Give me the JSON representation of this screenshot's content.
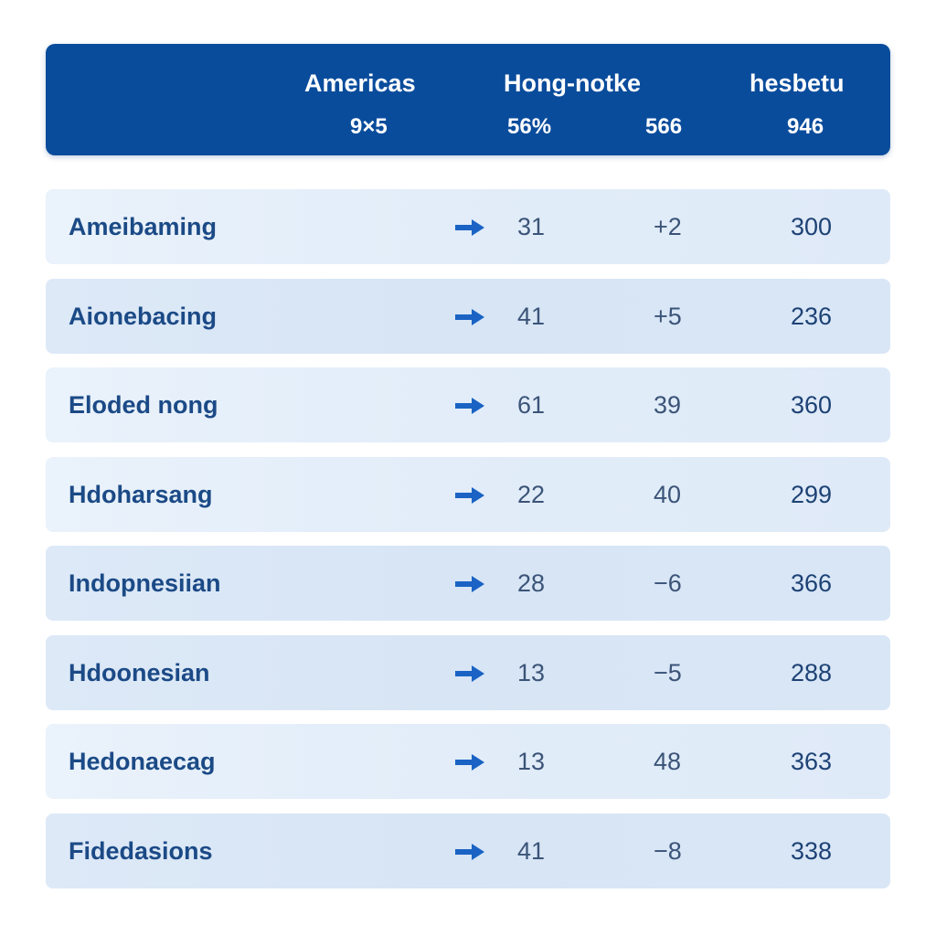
{
  "header": {
    "col1": {
      "title": "Americas",
      "sub": "9×5"
    },
    "col2": {
      "title": "Hong-notke",
      "sub": "56%"
    },
    "col3": {
      "sub": "566"
    },
    "col4": {
      "title": "hesbetu",
      "sub": "946"
    }
  },
  "rows": [
    {
      "name": "Ameibaming",
      "v1": "31",
      "v2": "+2",
      "v3": "300"
    },
    {
      "name": "Aionebacing",
      "v1": "41",
      "v2": "+5",
      "v3": "236"
    },
    {
      "name": "Eloded nong",
      "v1": "61",
      "v2": "39",
      "v3": "360"
    },
    {
      "name": "Hdoharsang",
      "v1": "22",
      "v2": "40",
      "v3": "299"
    },
    {
      "name": "Indopnesiian",
      "v1": "28",
      "v2": "−6",
      "v3": "366"
    },
    {
      "name": "Hdoonesian",
      "v1": "13",
      "v2": "−5",
      "v3": "288"
    },
    {
      "name": "Hedonaecag",
      "v1": "13",
      "v2": "48",
      "v3": "363"
    },
    {
      "name": "Fidedasions",
      "v1": "41",
      "v2": "−8",
      "v3": "338"
    }
  ],
  "icons": {
    "row_indicator": "arrow-right-icon"
  },
  "colors": {
    "header_bg": "#0a4c9c",
    "arrow": "#1a63c4",
    "row_text": "#1b4a86"
  }
}
